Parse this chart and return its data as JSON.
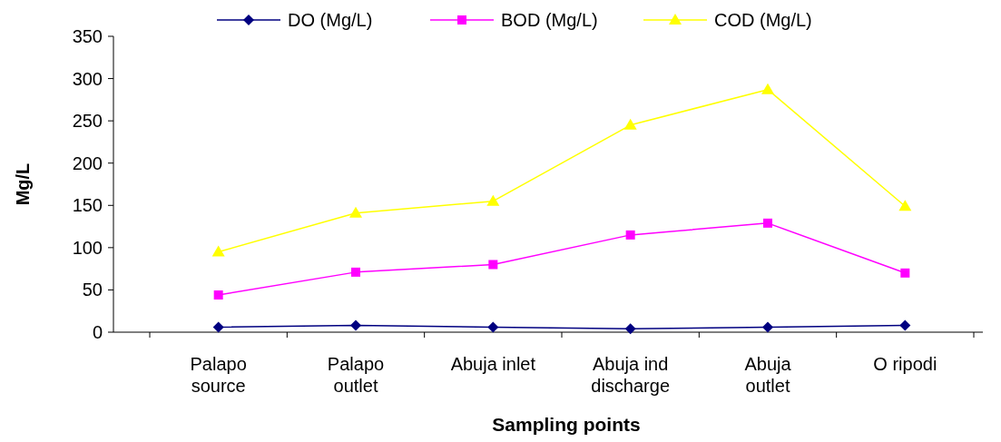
{
  "chart_data": {
    "type": "line",
    "xlabel": "Sampling points",
    "ylabel": "Mg/L",
    "categories": [
      "Palapo\nsource",
      "Palapo\noutlet",
      "Abuja inlet",
      "Abuja ind\ndischarge",
      "Abuja\noutlet",
      "O ripodi"
    ],
    "series": [
      {
        "name": "DO  (Mg/L)",
        "color": "#000080",
        "marker": "diamond",
        "values": [
          6,
          8,
          6,
          4,
          6,
          8
        ]
      },
      {
        "name": "BOD  (Mg/L)",
        "color": "#ff00ff",
        "marker": "square",
        "values": [
          44,
          71,
          80,
          115,
          129,
          70
        ]
      },
      {
        "name": "COD  (Mg/L)",
        "color": "#ffff00",
        "marker": "triangle",
        "values": [
          95,
          141,
          155,
          245,
          287,
          149
        ]
      }
    ],
    "ylim": [
      0,
      350
    ],
    "yticks": [
      0,
      50,
      100,
      150,
      200,
      250,
      300,
      350
    ],
    "legend": "top",
    "grid": false
  }
}
